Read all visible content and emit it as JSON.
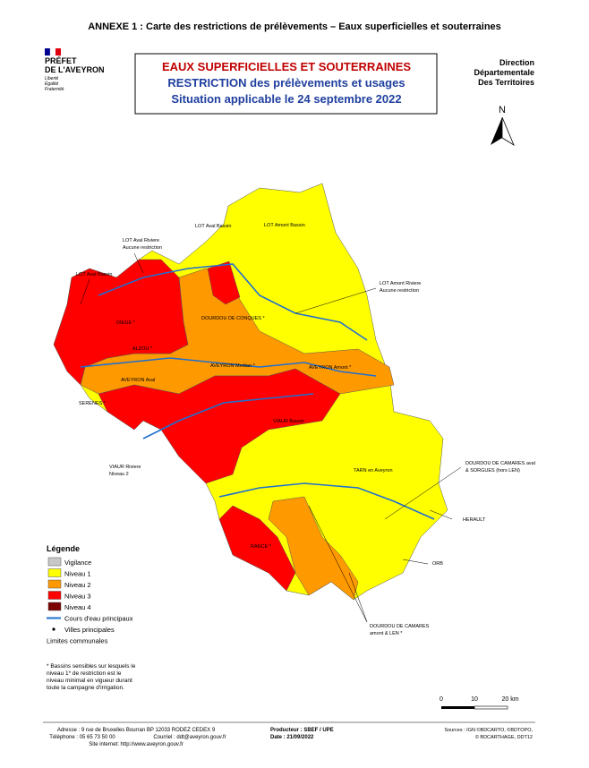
{
  "header": {
    "annex": "ANNEXE 1 : Carte des restrictions de prélèvements – Eaux superficielles et souterraines"
  },
  "prefet": {
    "line1": "PRÉFET",
    "line2": "DE L'AVEYRON",
    "motto": [
      "Liberté",
      "Égalité",
      "Fraternité"
    ]
  },
  "title": {
    "lines": [
      "EAUX SUPERFICIELLES ET SOUTERRAINES",
      "RESTRICTION des prélèvements et usages",
      "Situation applicable le 24 septembre 2022"
    ]
  },
  "direction": {
    "lines": [
      "Direction",
      "Départementale",
      "Des Territoires"
    ]
  },
  "north": "N",
  "map_labels": [
    [
      "LOT Aval Bassin"
    ],
    [
      "LOT Aval Riviere",
      "Aucune restriction"
    ],
    [
      "LOT Aval Bassin"
    ],
    [
      "LOT Amont Bassin"
    ],
    [
      "LOT Amont Riviere",
      "Aucune restriction"
    ],
    [
      "DIEGE *"
    ],
    [
      "ALZOU *"
    ],
    [
      "DOURDOU DE CONQUES *"
    ],
    [
      "AVEYRON Median *"
    ],
    [
      "AVEYRON Amont *"
    ],
    [
      "AVEYRON Aval"
    ],
    [
      "SERENES *"
    ],
    [
      "VIAUR Bassin"
    ],
    [
      "VIAUR Riviere",
      "Niveau 2"
    ],
    [
      "TARN en Aveyron"
    ],
    [
      "DOURDOU DE CAMARES aval",
      "& SORGUES (hors LEN)"
    ],
    [
      "HERAULT"
    ],
    [
      "ORB"
    ],
    [
      "RANCE *"
    ],
    [
      "DOURDOU DE CAMARES",
      "amont & LEN *"
    ]
  ],
  "legend": {
    "title": "Légende",
    "items": [
      "Vigilance",
      "Niveau 1",
      "Niveau 2",
      "Niveau 3",
      "Niveau 4",
      "Cours d'eau principaux",
      "Villes principales",
      "Limites communales"
    ]
  },
  "note": [
    "* Bassins sensibles sur lesquels le",
    "niveau 1* de restriction est le",
    "niveau minimal en vigueur durant",
    "toute la campagne d'irrigation."
  ],
  "scale": [
    "0",
    "10",
    "20 km"
  ],
  "footer": {
    "address": "Adresse : 9 rue de Bruxelles Bourran BP 12033 RODEZ CEDEX 9",
    "phone": "Téléphone : 05 65 73 50 00",
    "mail": "Courriel : ddt@aveyron.gouv.fr",
    "site": "Site internet: http://www.aveyron.gouv.fr",
    "producer": "Producteur : SBEF / UPE",
    "date": "Date : 21/09/2022",
    "sources": [
      "Sources : IGN ©BDCARTO, ©BDTOPO,",
      "© BDCARTHAGE, DDT12"
    ]
  }
}
